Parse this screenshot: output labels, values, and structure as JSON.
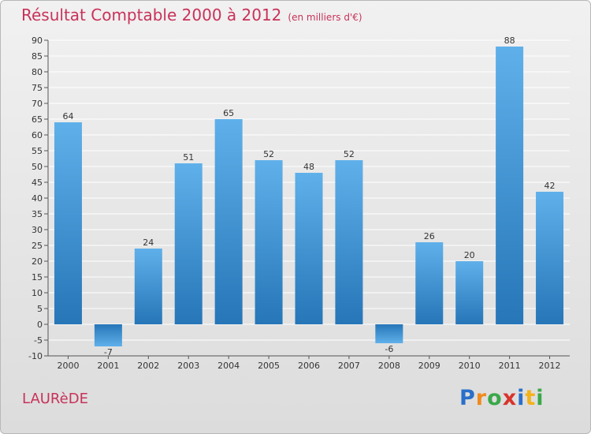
{
  "chart_data": {
    "type": "bar",
    "title": "Résultat Comptable 2000 à 2012",
    "subtitle": "(en milliers d'€)",
    "categories": [
      "2000",
      "2001",
      "2002",
      "2003",
      "2004",
      "2005",
      "2006",
      "2007",
      "2008",
      "2009",
      "2010",
      "2011",
      "2012"
    ],
    "values": [
      64,
      -7,
      24,
      51,
      65,
      52,
      48,
      52,
      -6,
      26,
      20,
      88,
      42
    ],
    "ylim": [
      -10,
      90
    ],
    "yticks": [
      -10,
      -5,
      0,
      5,
      10,
      15,
      20,
      25,
      30,
      35,
      40,
      45,
      50,
      55,
      60,
      65,
      70,
      75,
      80,
      85,
      90
    ],
    "xlabel": "",
    "ylabel": "",
    "grid": true
  },
  "commune": "LAURèDE",
  "logo": {
    "letters": [
      "P",
      "r",
      "o",
      "x",
      "i",
      "t",
      "i"
    ],
    "colors": [
      "#2a6fc9",
      "#f08a1c",
      "#3aa84a",
      "#d8342c",
      "#2a6fc9",
      "#f3b21b",
      "#3aa84a"
    ]
  },
  "colors": {
    "title": "#c8325a",
    "bar_light": "#5fb0ea",
    "bar_dark": "#2676b8",
    "grid": "#ffffff",
    "text": "#333333"
  }
}
